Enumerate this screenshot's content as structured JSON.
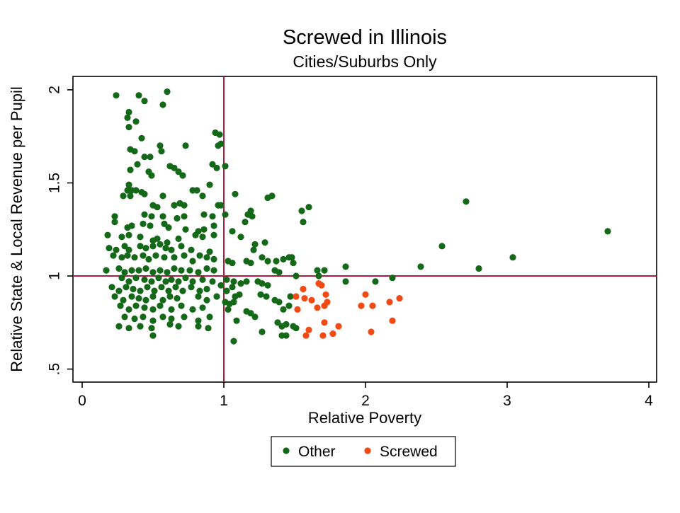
{
  "header": {
    "title": "Screwed in Illinois",
    "subtitle": "Cities/Suburbs Only"
  },
  "colors": {
    "background": "#ffffff",
    "axis": "#000000",
    "reference_line": "#a51c3c",
    "other_green": "#146919",
    "screwed_orange": "#f04b14"
  },
  "chart_data": {
    "type": "scatter",
    "title": "Screwed in Illinois",
    "subtitle": "Cities/Suburbs Only",
    "xlabel": "Relative Poverty",
    "ylabel": "Relative State & Local Revenue per Pupil",
    "xlim": [
      -0.065,
      4.055
    ],
    "ylim": [
      0.43,
      2.072
    ],
    "xticks": {
      "values": [
        0,
        1,
        2,
        3,
        4
      ],
      "labels": [
        "0",
        "1",
        "2",
        "3",
        "4"
      ]
    },
    "yticks": {
      "values": [
        0.5,
        1,
        1.5,
        2
      ],
      "labels": [
        ".5",
        "1",
        "1.5",
        "2"
      ]
    },
    "grid": false,
    "reference_lines": {
      "x": 1,
      "y": 1,
      "color": "#a51c3c"
    },
    "legend": {
      "position": "bottom",
      "entries": [
        "Other",
        "Screwed"
      ]
    },
    "series": [
      {
        "name": "Other",
        "color": "#146919",
        "points": [
          [
            0.24,
            1.97
          ],
          [
            0.4,
            1.97
          ],
          [
            0.44,
            1.94
          ],
          [
            0.6,
            1.99
          ],
          [
            0.57,
            1.92
          ],
          [
            0.33,
            1.88
          ],
          [
            0.32,
            1.85
          ],
          [
            0.38,
            1.83
          ],
          [
            0.33,
            1.8
          ],
          [
            0.42,
            1.74
          ],
          [
            0.94,
            1.77
          ],
          [
            0.96,
            1.7
          ],
          [
            0.55,
            1.7
          ],
          [
            0.56,
            1.67
          ],
          [
            0.73,
            1.7
          ],
          [
            0.34,
            1.68
          ],
          [
            0.37,
            1.67
          ],
          [
            0.44,
            1.64
          ],
          [
            0.48,
            1.64
          ],
          [
            0.39,
            1.6
          ],
          [
            0.34,
            1.57
          ],
          [
            0.47,
            1.56
          ],
          [
            0.49,
            1.54
          ],
          [
            0.62,
            1.59
          ],
          [
            0.65,
            1.58
          ],
          [
            0.68,
            1.56
          ],
          [
            0.71,
            1.54
          ],
          [
            0.92,
            1.6
          ],
          [
            0.95,
            1.58
          ],
          [
            0.9,
            1.49
          ],
          [
            0.33,
            1.49
          ],
          [
            0.32,
            1.46
          ],
          [
            0.35,
            1.46
          ],
          [
            0.38,
            1.46
          ],
          [
            0.42,
            1.45
          ],
          [
            0.44,
            1.44
          ],
          [
            0.34,
            1.43
          ],
          [
            0.29,
            1.43
          ],
          [
            0.57,
            1.43
          ],
          [
            0.5,
            1.38
          ],
          [
            0.53,
            1.37
          ],
          [
            0.65,
            1.38
          ],
          [
            0.69,
            1.39
          ],
          [
            0.72,
            1.38
          ],
          [
            0.78,
            1.46
          ],
          [
            0.81,
            1.46
          ],
          [
            0.85,
            1.43
          ],
          [
            0.96,
            1.38
          ],
          [
            0.97,
            1.76
          ],
          [
            0.98,
            1.71
          ],
          [
            1.01,
            1.59
          ],
          [
            1.08,
            1.44
          ],
          [
            1.31,
            1.42
          ],
          [
            1.34,
            1.43
          ],
          [
            1.55,
            1.35
          ],
          [
            1.6,
            1.37
          ],
          [
            1.19,
            1.35
          ],
          [
            0.98,
            1.38
          ],
          [
            0.23,
            1.32
          ],
          [
            0.44,
            1.33
          ],
          [
            0.49,
            1.32
          ],
          [
            0.57,
            1.32
          ],
          [
            0.67,
            1.31
          ],
          [
            0.72,
            1.32
          ],
          [
            0.86,
            1.33
          ],
          [
            0.92,
            1.32
          ],
          [
            0.23,
            1.29
          ],
          [
            0.32,
            1.26
          ],
          [
            0.35,
            1.27
          ],
          [
            0.43,
            1.28
          ],
          [
            0.48,
            1.27
          ],
          [
            0.58,
            1.28
          ],
          [
            0.61,
            1.26
          ],
          [
            0.73,
            1.25
          ],
          [
            0.82,
            1.24
          ],
          [
            0.86,
            1.25
          ],
          [
            0.93,
            1.27
          ],
          [
            0.18,
            1.22
          ],
          [
            0.28,
            1.21
          ],
          [
            0.33,
            1.22
          ],
          [
            0.41,
            1.21
          ],
          [
            0.5,
            1.19
          ],
          [
            0.53,
            1.2
          ],
          [
            0.6,
            1.18
          ],
          [
            0.68,
            1.2
          ],
          [
            0.8,
            1.22
          ],
          [
            0.85,
            1.21
          ],
          [
            0.93,
            1.22
          ],
          [
            0.19,
            1.15
          ],
          [
            0.24,
            1.14
          ],
          [
            0.3,
            1.16
          ],
          [
            0.33,
            1.14
          ],
          [
            0.41,
            1.16
          ],
          [
            0.45,
            1.15
          ],
          [
            0.5,
            1.16
          ],
          [
            0.55,
            1.17
          ],
          [
            0.59,
            1.15
          ],
          [
            0.63,
            1.14
          ],
          [
            0.7,
            1.16
          ],
          [
            0.77,
            1.14
          ],
          [
            0.83,
            1.11
          ],
          [
            0.9,
            1.13
          ],
          [
            0.22,
            1.11
          ],
          [
            0.28,
            1.1
          ],
          [
            0.32,
            1.11
          ],
          [
            0.37,
            1.1
          ],
          [
            0.43,
            1.11
          ],
          [
            0.47,
            1.09
          ],
          [
            0.52,
            1.11
          ],
          [
            0.58,
            1.1
          ],
          [
            0.65,
            1.1
          ],
          [
            0.72,
            1.11
          ],
          [
            0.78,
            1.08
          ],
          [
            0.88,
            1.1
          ],
          [
            0.93,
            1.09
          ],
          [
            0.17,
            1.03
          ],
          [
            0.26,
            1.04
          ],
          [
            0.3,
            1.02
          ],
          [
            0.35,
            1.03
          ],
          [
            0.4,
            1.03
          ],
          [
            0.45,
            1.04
          ],
          [
            0.5,
            1.02
          ],
          [
            0.55,
            1.03
          ],
          [
            0.6,
            1.02
          ],
          [
            0.65,
            1.04
          ],
          [
            0.7,
            1.03
          ],
          [
            0.76,
            1.03
          ],
          [
            0.82,
            1.02
          ],
          [
            0.88,
            1.04
          ],
          [
            0.93,
            1.03
          ],
          [
            0.28,
            0.99
          ],
          [
            0.33,
            0.97
          ],
          [
            0.38,
            0.99
          ],
          [
            0.44,
            0.98
          ],
          [
            0.49,
            0.97
          ],
          [
            0.54,
            0.99
          ],
          [
            0.59,
            0.97
          ],
          [
            0.63,
            0.98
          ],
          [
            0.68,
            0.97
          ],
          [
            0.73,
            0.99
          ],
          [
            0.78,
            0.97
          ],
          [
            0.85,
            0.98
          ],
          [
            0.92,
            0.97
          ],
          [
            0.21,
            0.94
          ],
          [
            0.26,
            0.92
          ],
          [
            0.31,
            0.94
          ],
          [
            0.36,
            0.93
          ],
          [
            0.41,
            0.92
          ],
          [
            0.46,
            0.94
          ],
          [
            0.51,
            0.92
          ],
          [
            0.56,
            0.94
          ],
          [
            0.61,
            0.92
          ],
          [
            0.66,
            0.94
          ],
          [
            0.71,
            0.92
          ],
          [
            0.77,
            0.94
          ],
          [
            0.83,
            0.92
          ],
          [
            0.88,
            0.93
          ],
          [
            0.23,
            0.89
          ],
          [
            0.29,
            0.87
          ],
          [
            0.35,
            0.89
          ],
          [
            0.4,
            0.88
          ],
          [
            0.45,
            0.87
          ],
          [
            0.5,
            0.89
          ],
          [
            0.57,
            0.87
          ],
          [
            0.62,
            0.89
          ],
          [
            0.67,
            0.88
          ],
          [
            0.82,
            0.89
          ],
          [
            0.88,
            0.87
          ],
          [
            0.95,
            0.89
          ],
          [
            0.27,
            0.84
          ],
          [
            0.33,
            0.82
          ],
          [
            0.38,
            0.84
          ],
          [
            0.44,
            0.83
          ],
          [
            0.5,
            0.82
          ],
          [
            0.55,
            0.84
          ],
          [
            0.63,
            0.82
          ],
          [
            0.7,
            0.84
          ],
          [
            0.78,
            0.82
          ],
          [
            0.85,
            0.83
          ],
          [
            0.3,
            0.78
          ],
          [
            0.37,
            0.77
          ],
          [
            0.43,
            0.78
          ],
          [
            0.5,
            0.76
          ],
          [
            0.57,
            0.78
          ],
          [
            0.63,
            0.77
          ],
          [
            0.72,
            0.78
          ],
          [
            0.82,
            0.76
          ],
          [
            0.9,
            0.78
          ],
          [
            0.26,
            0.73
          ],
          [
            0.33,
            0.72
          ],
          [
            0.41,
            0.73
          ],
          [
            0.49,
            0.72
          ],
          [
            0.62,
            0.74
          ],
          [
            0.68,
            0.73
          ],
          [
            0.82,
            0.73
          ],
          [
            0.89,
            0.72
          ],
          [
            0.5,
            0.68
          ],
          [
            1.01,
            1.33
          ],
          [
            1.17,
            1.33
          ],
          [
            1.2,
            1.32
          ],
          [
            1.56,
            1.29
          ],
          [
            1.15,
            1.29
          ],
          [
            1.06,
            1.24
          ],
          [
            1.12,
            1.21
          ],
          [
            1.22,
            1.17
          ],
          [
            1.29,
            1.18
          ],
          [
            1.21,
            1.14
          ],
          [
            1.27,
            1.1
          ],
          [
            1.03,
            1.08
          ],
          [
            1.06,
            1.07
          ],
          [
            1.16,
            1.08
          ],
          [
            1.19,
            1.07
          ],
          [
            1.31,
            1.08
          ],
          [
            1.37,
            1.08
          ],
          [
            1.42,
            1.09
          ],
          [
            1.46,
            1.1
          ],
          [
            1.48,
            1.1
          ],
          [
            1.49,
            1.07
          ],
          [
            1.36,
            1.03
          ],
          [
            1.39,
            1.02
          ],
          [
            1.51,
            1.0
          ],
          [
            1.66,
            1.03
          ],
          [
            1.71,
            1.03
          ],
          [
            1.67,
            1.0
          ],
          [
            1.02,
            0.98
          ],
          [
            1.07,
            0.97
          ],
          [
            1.12,
            0.96
          ],
          [
            1.16,
            0.97
          ],
          [
            0.98,
            0.95
          ],
          [
            1.02,
            0.92
          ],
          [
            1.06,
            0.94
          ],
          [
            1.24,
            0.97
          ],
          [
            1.27,
            0.96
          ],
          [
            1.31,
            0.95
          ],
          [
            1.08,
            0.89
          ],
          [
            1.11,
            0.9
          ],
          [
            1.01,
            0.86
          ],
          [
            1.04,
            0.85
          ],
          [
            1.07,
            0.86
          ],
          [
            1.26,
            0.9
          ],
          [
            1.3,
            0.89
          ],
          [
            1.36,
            0.87
          ],
          [
            1.39,
            0.86
          ],
          [
            1.47,
            0.89
          ],
          [
            1.16,
            0.81
          ],
          [
            1.19,
            0.8
          ],
          [
            1.22,
            0.78
          ],
          [
            1.03,
            0.82
          ],
          [
            1.09,
            0.76
          ],
          [
            1.42,
            0.82
          ],
          [
            1.46,
            0.84
          ],
          [
            1.38,
            0.75
          ],
          [
            1.41,
            0.73
          ],
          [
            1.44,
            0.74
          ],
          [
            1.27,
            0.7
          ],
          [
            1.49,
            0.73
          ],
          [
            1.41,
            0.68
          ],
          [
            1.44,
            0.68
          ],
          [
            1.07,
            0.65
          ],
          [
            1.51,
            0.72
          ],
          [
            2.71,
            1.4
          ],
          [
            2.54,
            1.16
          ],
          [
            2.39,
            1.05
          ],
          [
            2.8,
            1.04
          ],
          [
            1.86,
            1.05
          ],
          [
            1.86,
            0.97
          ],
          [
            2.07,
            0.97
          ],
          [
            2.19,
            0.99
          ],
          [
            3.71,
            1.24
          ],
          [
            3.04,
            1.1
          ]
        ]
      },
      {
        "name": "Screwed",
        "color": "#f04b14",
        "points": [
          [
            1.56,
            0.93
          ],
          [
            1.51,
            0.89
          ],
          [
            1.57,
            0.88
          ],
          [
            1.62,
            0.87
          ],
          [
            1.67,
            0.96
          ],
          [
            1.69,
            0.95
          ],
          [
            1.72,
            0.9
          ],
          [
            1.66,
            0.83
          ],
          [
            1.71,
            0.84
          ],
          [
            1.73,
            0.86
          ],
          [
            1.52,
            0.82
          ],
          [
            1.71,
            0.75
          ],
          [
            1.6,
            0.71
          ],
          [
            1.7,
            0.68
          ],
          [
            1.81,
            0.73
          ],
          [
            2.0,
            0.9
          ],
          [
            1.97,
            0.84
          ],
          [
            2.05,
            0.84
          ],
          [
            2.17,
            0.86
          ],
          [
            2.24,
            0.88
          ],
          [
            2.19,
            0.76
          ],
          [
            2.04,
            0.7
          ],
          [
            1.77,
            0.69
          ],
          [
            1.58,
            0.68
          ]
        ]
      }
    ]
  }
}
